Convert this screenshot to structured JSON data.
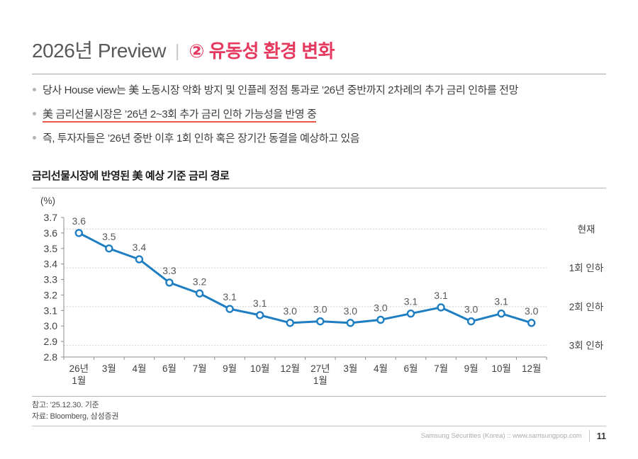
{
  "header": {
    "title_main": "2026년 Preview",
    "separator": "|",
    "title_accent": "② 유동성 환경 변화"
  },
  "bullets": [
    {
      "text": "당사 House view는 美 노동시장 악화 방지 및 인플레 정점 통과로 ’26년 중반까지 2차례의 추가 금리 인하를 전망",
      "underlined": false
    },
    {
      "text": "美 금리선물시장은 ’26년 2~3회 추가 금리 인하 가능성을 반영 중",
      "underlined": true
    },
    {
      "text": "즉, 투자자들은 ’26년 중반 이후 1회 인하 혹은 장기간 동결을 예상하고 있음",
      "underlined": false
    }
  ],
  "section": {
    "title": "금리선물시장에 반영된 美 예상 기준 금리 경로"
  },
  "chart_data": {
    "type": "line",
    "title": "금리선물시장에 반영된 美 예상 기준 금리 경로",
    "unit_label": "(%)",
    "xlabel": "",
    "ylabel": "(%)",
    "ylim": [
      2.8,
      3.7
    ],
    "y_ticks": [
      "3.7",
      "3.6",
      "3.5",
      "3.4",
      "3.3",
      "3.2",
      "3.1",
      "3.0",
      "2.9",
      "2.8"
    ],
    "categories": [
      "26년|1월",
      "3월",
      "4월",
      "6월",
      "7월",
      "9월",
      "10월",
      "12월",
      "27년|1월",
      "3월",
      "4월",
      "6월",
      "7월",
      "9월",
      "10월",
      "12월"
    ],
    "values": [
      3.6,
      3.5,
      3.43,
      3.28,
      3.21,
      3.11,
      3.07,
      3.02,
      3.03,
      3.02,
      3.04,
      3.08,
      3.12,
      3.03,
      3.08,
      3.02
    ],
    "point_labels": [
      "3.6",
      "3.5",
      "3.4",
      "3.3",
      "3.2",
      "3.1",
      "3.1",
      "3.0",
      "3.0",
      "3.0",
      "3.0",
      "3.1",
      "3.1",
      "3.0",
      "3.1",
      "3.0"
    ],
    "reference_lines": [
      {
        "label": "현재",
        "value": 3.625
      },
      {
        "label": "1회 인하",
        "value": 3.375
      },
      {
        "label": "2회 인하",
        "value": 3.125
      },
      {
        "label": "3회 인하",
        "value": 2.875
      }
    ],
    "grid_on": true,
    "legend_position": "none",
    "line_color": "#1f7ec2"
  },
  "notes": [
    "참고: ’25.12.30. 기준",
    "자료: Bloomberg, 삼성증권"
  ],
  "footer": {
    "source": "Samsung Securities (Korea) :: www.samsungpop.com",
    "page": "11"
  },
  "colors": {
    "accent_pink": "#e5395f",
    "underline_red": "#e8564e",
    "line_blue": "#1f7ec2"
  }
}
